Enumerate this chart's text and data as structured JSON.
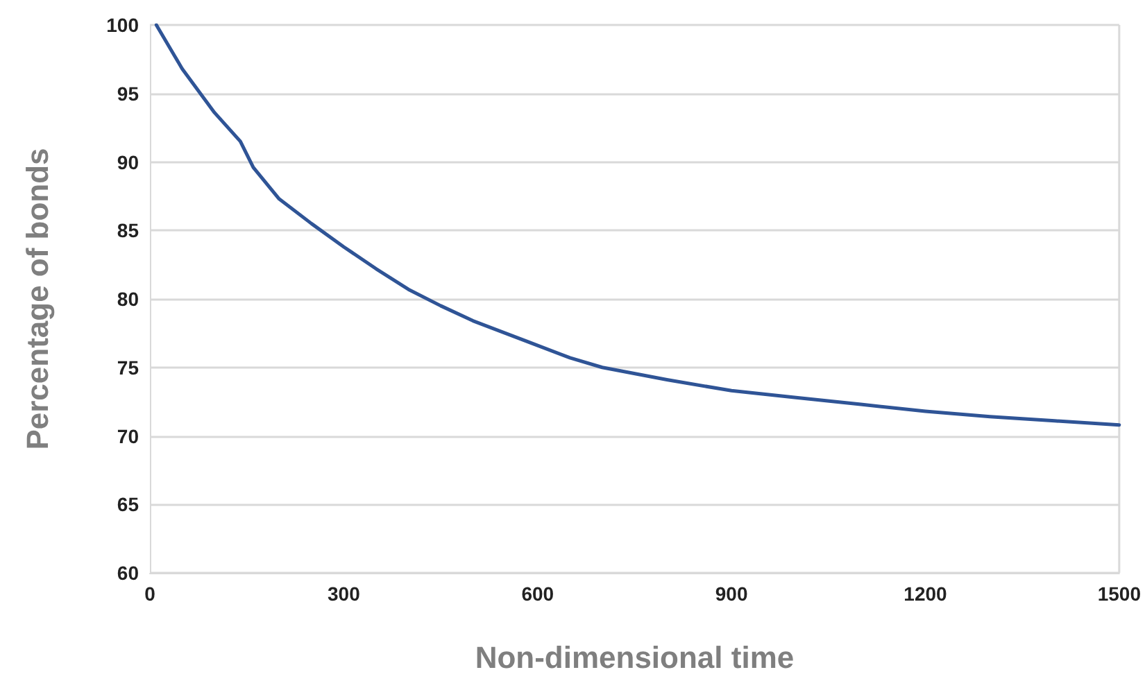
{
  "chart_data": {
    "type": "line",
    "xlabel": "Non-dimensional time",
    "ylabel": "Percentage of bonds",
    "x": [
      10,
      50,
      100,
      140,
      160,
      200,
      250,
      300,
      350,
      400,
      450,
      500,
      550,
      600,
      650,
      700,
      800,
      900,
      1000,
      1100,
      1200,
      1300,
      1400,
      1500
    ],
    "series": [
      {
        "color": "#2f5496",
        "values": [
          100,
          96.8,
          93.6,
          91.5,
          89.6,
          87.3,
          85.5,
          83.8,
          82.2,
          80.7,
          79.5,
          78.4,
          77.5,
          76.6,
          75.7,
          75.0,
          74.1,
          73.3,
          72.8,
          72.3,
          71.8,
          71.4,
          71.1,
          70.8
        ]
      }
    ],
    "xlim": [
      0,
      1500
    ],
    "xticks": [
      0,
      300,
      600,
      900,
      1200,
      1500
    ],
    "ylim": [
      60,
      100
    ],
    "yticks": [
      60,
      65,
      70,
      75,
      80,
      85,
      90,
      95,
      100
    ],
    "grid": "y",
    "marker": "none",
    "line_style": "solid"
  }
}
